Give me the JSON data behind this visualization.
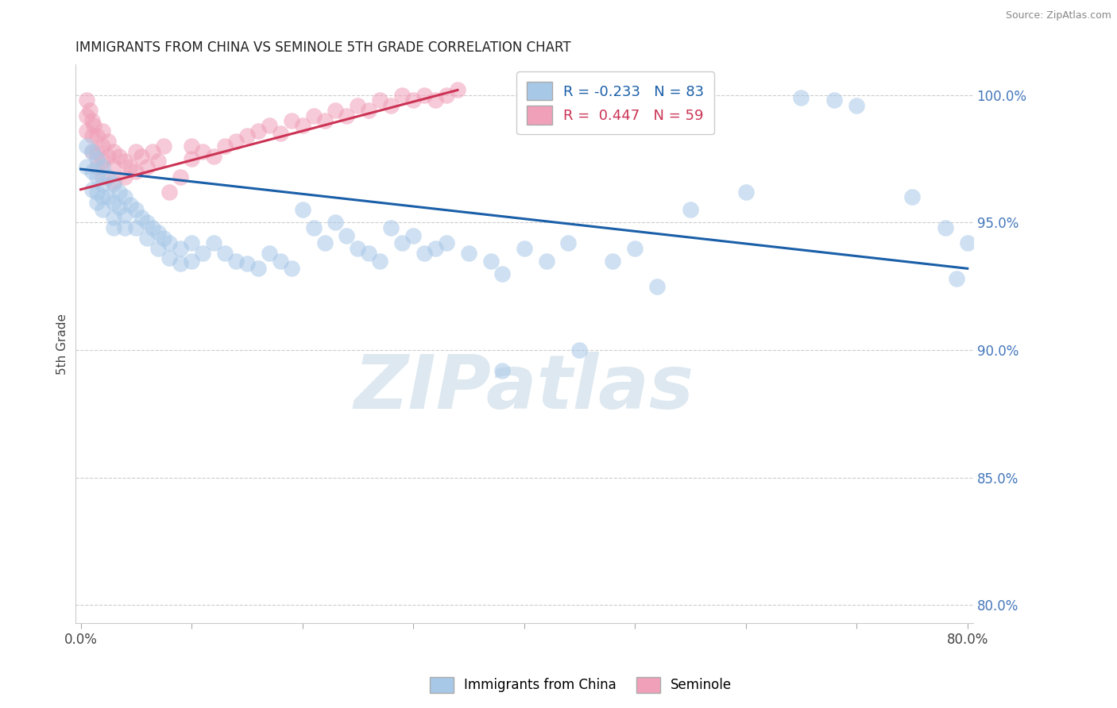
{
  "title": "IMMIGRANTS FROM CHINA VS SEMINOLE 5TH GRADE CORRELATION CHART",
  "source": "Source: ZipAtlas.com",
  "ylabel": "5th Grade",
  "legend_blue_label": "Immigrants from China",
  "legend_pink_label": "Seminole",
  "blue_R": -0.233,
  "blue_N": 83,
  "pink_R": 0.447,
  "pink_N": 59,
  "xlim": [
    -0.005,
    0.805
  ],
  "ylim": [
    0.793,
    1.012
  ],
  "yticks": [
    0.8,
    0.85,
    0.9,
    0.95,
    1.0
  ],
  "ytick_labels": [
    "80.0%",
    "85.0%",
    "90.0%",
    "95.0%",
    "100.0%"
  ],
  "xticks": [
    0.0,
    0.1,
    0.2,
    0.3,
    0.4,
    0.5,
    0.6,
    0.7,
    0.8
  ],
  "xtick_labels": [
    "0.0%",
    "",
    "",
    "",
    "",
    "",
    "",
    "",
    "80.0%"
  ],
  "blue_color": "#a8c8e8",
  "pink_color": "#f0a0b8",
  "blue_line_color": "#1a5fa8",
  "pink_line_color": "#cc3355",
  "watermark": "ZIPatlas",
  "watermark_color": "#dde8f0",
  "blue_scatter_x": [
    0.005,
    0.005,
    0.01,
    0.01,
    0.01,
    0.015,
    0.015,
    0.015,
    0.015,
    0.02,
    0.02,
    0.02,
    0.02,
    0.025,
    0.025,
    0.03,
    0.03,
    0.03,
    0.03,
    0.035,
    0.035,
    0.04,
    0.04,
    0.04,
    0.045,
    0.05,
    0.05,
    0.055,
    0.06,
    0.06,
    0.065,
    0.07,
    0.07,
    0.075,
    0.08,
    0.08,
    0.09,
    0.09,
    0.1,
    0.1,
    0.11,
    0.12,
    0.13,
    0.14,
    0.15,
    0.16,
    0.17,
    0.18,
    0.19,
    0.2,
    0.21,
    0.22,
    0.23,
    0.24,
    0.25,
    0.26,
    0.27,
    0.28,
    0.29,
    0.3,
    0.31,
    0.32,
    0.33,
    0.35,
    0.37,
    0.38,
    0.4,
    0.42,
    0.44,
    0.48,
    0.5,
    0.55,
    0.6,
    0.65,
    0.68,
    0.7,
    0.75,
    0.78,
    0.79,
    0.8,
    0.52,
    0.45,
    0.38
  ],
  "blue_scatter_y": [
    0.98,
    0.972,
    0.978,
    0.97,
    0.963,
    0.975,
    0.968,
    0.962,
    0.958,
    0.972,
    0.965,
    0.96,
    0.955,
    0.968,
    0.96,
    0.965,
    0.958,
    0.952,
    0.948,
    0.962,
    0.956,
    0.96,
    0.953,
    0.948,
    0.957,
    0.955,
    0.948,
    0.952,
    0.95,
    0.944,
    0.948,
    0.946,
    0.94,
    0.944,
    0.942,
    0.936,
    0.94,
    0.934,
    0.942,
    0.935,
    0.938,
    0.942,
    0.938,
    0.935,
    0.934,
    0.932,
    0.938,
    0.935,
    0.932,
    0.955,
    0.948,
    0.942,
    0.95,
    0.945,
    0.94,
    0.938,
    0.935,
    0.948,
    0.942,
    0.945,
    0.938,
    0.94,
    0.942,
    0.938,
    0.935,
    0.93,
    0.94,
    0.935,
    0.942,
    0.935,
    0.94,
    0.955,
    0.962,
    0.999,
    0.998,
    0.996,
    0.96,
    0.948,
    0.928,
    0.942,
    0.925,
    0.9,
    0.892
  ],
  "pink_scatter_x": [
    0.005,
    0.005,
    0.005,
    0.008,
    0.01,
    0.01,
    0.01,
    0.012,
    0.015,
    0.015,
    0.015,
    0.02,
    0.02,
    0.02,
    0.02,
    0.025,
    0.025,
    0.03,
    0.03,
    0.03,
    0.035,
    0.04,
    0.04,
    0.045,
    0.05,
    0.05,
    0.055,
    0.06,
    0.065,
    0.07,
    0.075,
    0.08,
    0.09,
    0.1,
    0.1,
    0.11,
    0.12,
    0.13,
    0.14,
    0.15,
    0.16,
    0.17,
    0.18,
    0.19,
    0.2,
    0.21,
    0.22,
    0.23,
    0.24,
    0.25,
    0.26,
    0.27,
    0.28,
    0.29,
    0.3,
    0.31,
    0.32,
    0.33,
    0.34
  ],
  "pink_scatter_y": [
    0.998,
    0.992,
    0.986,
    0.994,
    0.99,
    0.984,
    0.978,
    0.988,
    0.984,
    0.978,
    0.972,
    0.986,
    0.98,
    0.974,
    0.968,
    0.982,
    0.976,
    0.978,
    0.972,
    0.966,
    0.976,
    0.974,
    0.968,
    0.972,
    0.978,
    0.97,
    0.976,
    0.972,
    0.978,
    0.974,
    0.98,
    0.962,
    0.968,
    0.98,
    0.975,
    0.978,
    0.976,
    0.98,
    0.982,
    0.984,
    0.986,
    0.988,
    0.985,
    0.99,
    0.988,
    0.992,
    0.99,
    0.994,
    0.992,
    0.996,
    0.994,
    0.998,
    0.996,
    1.0,
    0.998,
    1.0,
    0.998,
    1.0,
    1.002
  ],
  "blue_trend_x": [
    0.0,
    0.8
  ],
  "blue_trend_y": [
    0.971,
    0.932
  ],
  "pink_trend_x": [
    0.0,
    0.34
  ],
  "pink_trend_y": [
    0.963,
    1.002
  ]
}
